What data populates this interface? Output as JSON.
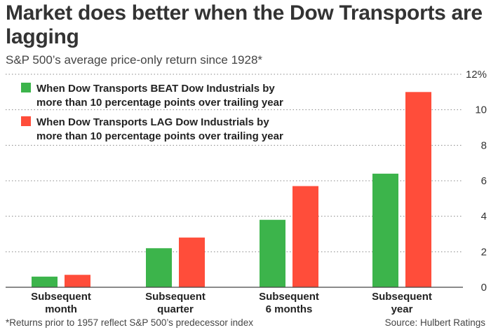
{
  "chart_data": {
    "type": "bar",
    "title": "Market does better when the Dow Transports are lagging",
    "subtitle": "S&P 500’s average price-only return since 1928*",
    "categories": [
      "Subsequent month",
      "Subsequent quarter",
      "Subsequent 6 months",
      "Subsequent year"
    ],
    "category_lines": [
      [
        "Subsequent",
        "month"
      ],
      [
        "Subsequent",
        "quarter"
      ],
      [
        "Subsequent",
        "6 months"
      ],
      [
        "Subsequent",
        "year"
      ]
    ],
    "series": [
      {
        "name_lines": [
          "When Dow Transports BEAT Dow Industrials by",
          "more than 10 percentage points over trailing year"
        ],
        "color": "#3cb44b",
        "values": [
          0.6,
          2.2,
          3.8,
          6.4
        ]
      },
      {
        "name_lines": [
          "When Dow Transports LAG Dow Industrials by",
          "more than 10 percentage points over trailing year"
        ],
        "color": "#ff4d3a",
        "values": [
          0.7,
          2.8,
          5.7,
          11.0
        ]
      }
    ],
    "ylim": [
      0,
      12
    ],
    "yticks": [
      0,
      2,
      4,
      6,
      8,
      10,
      12
    ],
    "ytick_labels": [
      "0",
      "2",
      "4",
      "6",
      "8",
      "10",
      "12%"
    ],
    "grid": "horizontal dotted",
    "legend_position": "top-left",
    "footnote": "*Returns prior to 1957 reflect S&P 500’s predecessor index",
    "source": "Source: Hulbert Ratings"
  }
}
